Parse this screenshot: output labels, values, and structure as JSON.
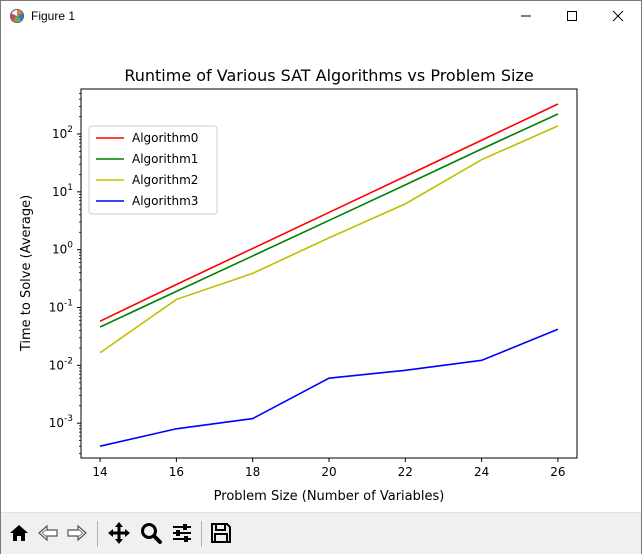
{
  "window": {
    "title": "Figure 1"
  },
  "chart_data": {
    "type": "line",
    "title": "Runtime of Various SAT Algorithms vs Problem Size",
    "xlabel": "Problem Size (Number of Variables)",
    "ylabel": "Time to Solve (Average)",
    "x": [
      14,
      16,
      18,
      20,
      22,
      24,
      26
    ],
    "xlim": [
      13.5,
      26.5
    ],
    "xticks": [
      "14",
      "16",
      "18",
      "20",
      "22",
      "24",
      "26"
    ],
    "yscale": "log",
    "ylim": [
      0.00025,
      600
    ],
    "yticks": [
      {
        "value": 0.001,
        "base": "10",
        "exp": "-3"
      },
      {
        "value": 0.01,
        "base": "10",
        "exp": "-2"
      },
      {
        "value": 0.1,
        "base": "10",
        "exp": "-1"
      },
      {
        "value": 1,
        "base": "10",
        "exp": "0"
      },
      {
        "value": 10,
        "base": "10",
        "exp": "1"
      },
      {
        "value": 100,
        "base": "10",
        "exp": "2"
      }
    ],
    "grid": false,
    "legend_position": "top-left",
    "series": [
      {
        "name": "Algorithm0",
        "color": "#ff0000",
        "values": [
          0.058,
          0.25,
          1.05,
          4.4,
          18.5,
          78,
          330
        ]
      },
      {
        "name": "Algorithm1",
        "color": "#008000",
        "values": [
          0.046,
          0.19,
          0.78,
          3.2,
          13.2,
          55,
          222
        ]
      },
      {
        "name": "Algorithm2",
        "color": "#bfbf00",
        "values": [
          0.0165,
          0.138,
          0.39,
          1.6,
          6.2,
          36,
          138
        ]
      },
      {
        "name": "Algorithm3",
        "color": "#0000ff",
        "values": [
          0.0004,
          0.0008,
          0.0012,
          0.006,
          0.0082,
          0.0122,
          0.042
        ]
      }
    ]
  }
}
